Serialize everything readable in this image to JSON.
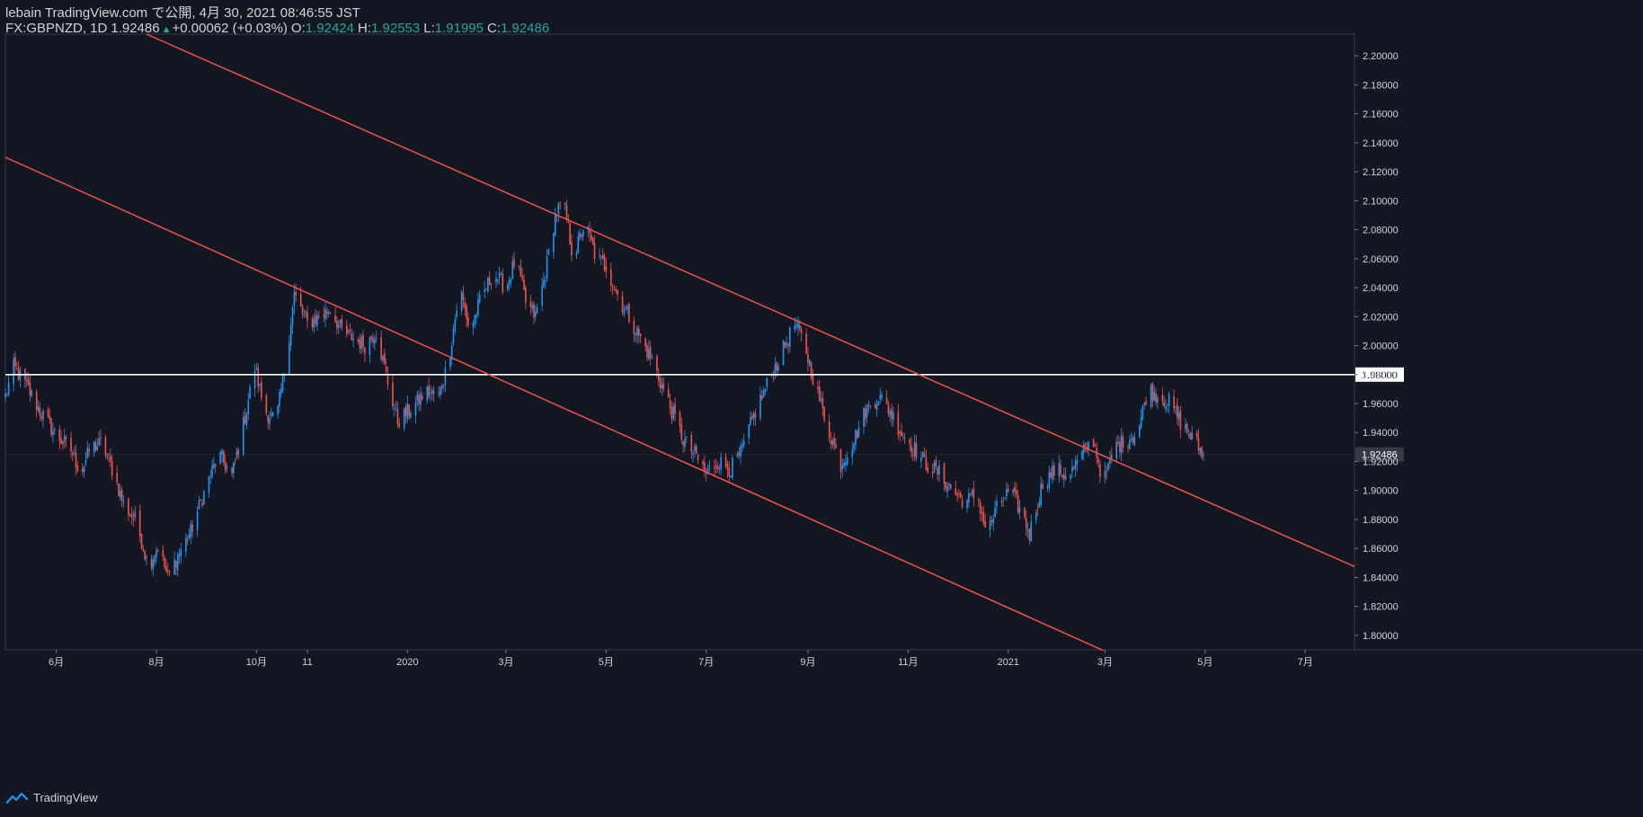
{
  "header": {
    "line1": "lebain TradingView.com で公開, 4月 30, 2021 08:46:55 JST",
    "symbol": "FX:GBPNZD, 1D",
    "last": "1.92486",
    "change_icon": "up-triangle-icon",
    "change": "+0.00062 (+0.03%)",
    "open_label": "O:",
    "open": "1.92424",
    "high_label": "H:",
    "high": "1.92553",
    "low_label": "L:",
    "low": "1.91995",
    "close_label": "C:",
    "close": "1.92486"
  },
  "footer": {
    "brand": "TradingView",
    "logo_icon": "tradingview-cloud-icon"
  },
  "colors": {
    "background": "#131722",
    "up": "#2196f3",
    "down": "#ef5350",
    "trendline": "#f0544c",
    "hline": "#ffffff",
    "axis_text": "#d1d4dc",
    "change_up": "#26a69a"
  },
  "chart_data": {
    "type": "candlestick",
    "symbol": "FX:GBPNZD",
    "interval": "1D",
    "ylim": [
      1.79,
      2.215
    ],
    "y_ticks": [
      "2.20000",
      "2.18000",
      "2.16000",
      "2.14000",
      "2.12000",
      "2.10000",
      "2.08000",
      "2.06000",
      "2.04000",
      "2.02000",
      "2.00000",
      "1.98000",
      "1.96000",
      "1.94000",
      "1.92000",
      "1.90000",
      "1.88000",
      "1.86000",
      "1.84000",
      "1.82000",
      "1.80000"
    ],
    "x_range": [
      "2019-05-01",
      "2021-07-31"
    ],
    "x_ticks": [
      {
        "date": "2019-06-01",
        "label": "6月"
      },
      {
        "date": "2019-08-01",
        "label": "8月"
      },
      {
        "date": "2019-10-01",
        "label": "10月"
      },
      {
        "date": "2019-11-01",
        "label": "11"
      },
      {
        "date": "2020-01-01",
        "label": "2020"
      },
      {
        "date": "2020-03-01",
        "label": "3月"
      },
      {
        "date": "2020-05-01",
        "label": "5月"
      },
      {
        "date": "2020-07-01",
        "label": "7月"
      },
      {
        "date": "2020-09-01",
        "label": "9月"
      },
      {
        "date": "2020-11-01",
        "label": "11月"
      },
      {
        "date": "2021-01-01",
        "label": "2021"
      },
      {
        "date": "2021-03-01",
        "label": "3月"
      },
      {
        "date": "2021-05-01",
        "label": "5月"
      },
      {
        "date": "2021-07-01",
        "label": "7月"
      }
    ],
    "close_path": [
      [
        "2019-05-01",
        1.965
      ],
      [
        "2019-05-06",
        1.985
      ],
      [
        "2019-05-14",
        1.972
      ],
      [
        "2019-05-22",
        1.955
      ],
      [
        "2019-06-01",
        1.938
      ],
      [
        "2019-06-10",
        1.928
      ],
      [
        "2019-06-16",
        1.912
      ],
      [
        "2019-06-22",
        1.93
      ],
      [
        "2019-06-29",
        1.932
      ],
      [
        "2019-07-06",
        1.912
      ],
      [
        "2019-07-12",
        1.89
      ],
      [
        "2019-07-20",
        1.878
      ],
      [
        "2019-07-27",
        1.848
      ],
      [
        "2019-08-02",
        1.862
      ],
      [
        "2019-08-08",
        1.84
      ],
      [
        "2019-08-14",
        1.855
      ],
      [
        "2019-08-22",
        1.872
      ],
      [
        "2019-09-01",
        1.905
      ],
      [
        "2019-09-08",
        1.925
      ],
      [
        "2019-09-16",
        1.91
      ],
      [
        "2019-09-22",
        1.94
      ],
      [
        "2019-09-30",
        1.985
      ],
      [
        "2019-10-06",
        1.955
      ],
      [
        "2019-10-13",
        1.948
      ],
      [
        "2019-10-19",
        1.99
      ],
      [
        "2019-10-24",
        2.035
      ],
      [
        "2019-11-01",
        2.015
      ],
      [
        "2019-11-08",
        2.02
      ],
      [
        "2019-11-15",
        2.025
      ],
      [
        "2019-11-22",
        2.01
      ],
      [
        "2019-11-29",
        2.005
      ],
      [
        "2019-12-06",
        2.0
      ],
      [
        "2019-12-13",
        2.01
      ],
      [
        "2019-12-20",
        1.975
      ],
      [
        "2019-12-26",
        1.948
      ],
      [
        "2020-01-02",
        1.955
      ],
      [
        "2020-01-12",
        1.968
      ],
      [
        "2020-01-20",
        1.965
      ],
      [
        "2020-01-26",
        1.99
      ],
      [
        "2020-02-02",
        2.04
      ],
      [
        "2020-02-08",
        2.01
      ],
      [
        "2020-02-14",
        2.03
      ],
      [
        "2020-02-22",
        2.05
      ],
      [
        "2020-03-01",
        2.04
      ],
      [
        "2020-03-07",
        2.06
      ],
      [
        "2020-03-13",
        2.03
      ],
      [
        "2020-03-19",
        2.02
      ],
      [
        "2020-03-25",
        2.05
      ],
      [
        "2020-03-31",
        2.09
      ],
      [
        "2020-04-05",
        2.1
      ],
      [
        "2020-04-11",
        2.06
      ],
      [
        "2020-04-18",
        2.085
      ],
      [
        "2020-04-25",
        2.06
      ],
      [
        "2020-05-01",
        2.055
      ],
      [
        "2020-05-08",
        2.035
      ],
      [
        "2020-05-15",
        2.02
      ],
      [
        "2020-05-22",
        2.005
      ],
      [
        "2020-05-29",
        1.99
      ],
      [
        "2020-06-03",
        1.975
      ],
      [
        "2020-06-10",
        1.955
      ],
      [
        "2020-06-17",
        1.935
      ],
      [
        "2020-06-24",
        1.925
      ],
      [
        "2020-07-01",
        1.912
      ],
      [
        "2020-07-08",
        1.92
      ],
      [
        "2020-07-16",
        1.915
      ],
      [
        "2020-07-22",
        1.925
      ],
      [
        "2020-07-31",
        1.955
      ],
      [
        "2020-08-08",
        1.975
      ],
      [
        "2020-08-16",
        1.995
      ],
      [
        "2020-08-24",
        2.015
      ],
      [
        "2020-08-30",
        2.0
      ],
      [
        "2020-09-06",
        1.97
      ],
      [
        "2020-09-14",
        1.94
      ],
      [
        "2020-09-21",
        1.918
      ],
      [
        "2020-09-29",
        1.935
      ],
      [
        "2020-10-06",
        1.955
      ],
      [
        "2020-10-14",
        1.965
      ],
      [
        "2020-10-21",
        1.955
      ],
      [
        "2020-10-28",
        1.94
      ],
      [
        "2020-11-04",
        1.93
      ],
      [
        "2020-11-12",
        1.918
      ],
      [
        "2020-11-20",
        1.912
      ],
      [
        "2020-11-28",
        1.9
      ],
      [
        "2020-12-06",
        1.892
      ],
      [
        "2020-12-13",
        1.898
      ],
      [
        "2020-12-19",
        1.87
      ],
      [
        "2020-12-26",
        1.89
      ],
      [
        "2021-01-02",
        1.9
      ],
      [
        "2021-01-09",
        1.885
      ],
      [
        "2021-01-14",
        1.87
      ],
      [
        "2021-01-22",
        1.905
      ],
      [
        "2021-01-30",
        1.915
      ],
      [
        "2021-02-07",
        1.91
      ],
      [
        "2021-02-15",
        1.925
      ],
      [
        "2021-02-22",
        1.935
      ],
      [
        "2021-02-28",
        1.905
      ],
      [
        "2021-03-07",
        1.93
      ],
      [
        "2021-03-14",
        1.935
      ],
      [
        "2021-03-21",
        1.94
      ],
      [
        "2021-03-27",
        1.97
      ],
      [
        "2021-04-03",
        1.965
      ],
      [
        "2021-04-10",
        1.96
      ],
      [
        "2021-04-17",
        1.945
      ],
      [
        "2021-04-24",
        1.935
      ],
      [
        "2021-04-30",
        1.92486
      ]
    ],
    "horizontal_line": {
      "value": 1.98,
      "label": "1.98000"
    },
    "trendlines": [
      {
        "from": [
          "2019-07-26",
          2.215
        ],
        "to": [
          "2021-07-31",
          1.8475
        ]
      },
      {
        "from": [
          "2019-05-01",
          2.13
        ],
        "to": [
          "2021-02-28",
          1.7895
        ]
      }
    ],
    "last_price": {
      "value": 1.92486,
      "label": "1.92486"
    }
  }
}
